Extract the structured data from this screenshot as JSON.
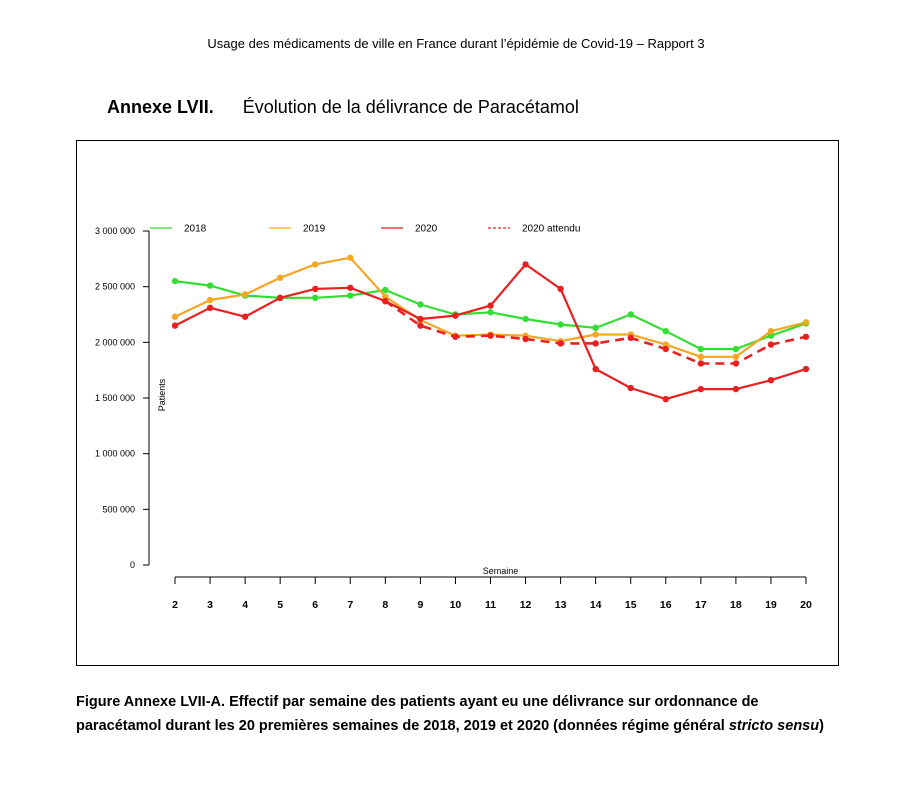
{
  "page_header": "Usage des médicaments de ville en France durant l’épidémie de Covid-19 – Rapport 3",
  "annex": {
    "label": "Annexe LVII.",
    "title": "Évolution de la délivrance de Paracétamol"
  },
  "caption": {
    "line1": "Figure Annexe LVII-A. Effectif par semaine des patients ayant eu une délivrance sur ordonnance de",
    "line2_main": "paracétamol durant les 20 premières semaines de 2018, 2019 et 2020 (données régime général ",
    "line2_italic": "stricto sensu",
    "line2_end": ")"
  },
  "chart_data": {
    "type": "line",
    "xlabel": "Semaine",
    "ylabel": "Patients",
    "x": [
      2,
      3,
      4,
      5,
      6,
      7,
      8,
      9,
      10,
      11,
      12,
      13,
      14,
      15,
      16,
      17,
      18,
      19,
      20
    ],
    "ylim": [
      0,
      3000000
    ],
    "yticks": [
      0,
      500000,
      1000000,
      1500000,
      2000000,
      2500000,
      3000000
    ],
    "ytick_labels": [
      "0",
      "500 000",
      "1 000 000",
      "1 500 000",
      "2 000 000",
      "2 500 000",
      "3 000 000"
    ],
    "legend_position": "top",
    "grid": false,
    "series": [
      {
        "name": "2018",
        "color": "#33dd33",
        "style": "solid",
        "markers": true,
        "values": [
          2550000,
          2510000,
          2420000,
          2400000,
          2400000,
          2420000,
          2470000,
          2340000,
          2250000,
          2270000,
          2210000,
          2160000,
          2130000,
          2250000,
          2100000,
          1940000,
          1940000,
          2060000,
          2170000
        ]
      },
      {
        "name": "2019",
        "color": "#f5a623",
        "style": "solid",
        "markers": true,
        "values": [
          2230000,
          2380000,
          2430000,
          2580000,
          2700000,
          2760000,
          2410000,
          2200000,
          2060000,
          2070000,
          2060000,
          2010000,
          2070000,
          2070000,
          1980000,
          1870000,
          1870000,
          2100000,
          2180000
        ]
      },
      {
        "name": "2020",
        "color": "#e82020",
        "style": "solid",
        "markers": true,
        "values": [
          2150000,
          2310000,
          2230000,
          2400000,
          2480000,
          2490000,
          2370000,
          2210000,
          2240000,
          2330000,
          2700000,
          2480000,
          1760000,
          1590000,
          1490000,
          1580000,
          1580000,
          1660000,
          1760000
        ]
      },
      {
        "name": "2020 attendu",
        "color": "#e82020",
        "style": "dashed",
        "markers": true,
        "values": [
          null,
          null,
          null,
          null,
          null,
          null,
          2370000,
          2150000,
          2050000,
          2060000,
          2030000,
          1990000,
          1990000,
          2040000,
          1940000,
          1810000,
          1810000,
          1980000,
          2050000
        ]
      }
    ]
  }
}
